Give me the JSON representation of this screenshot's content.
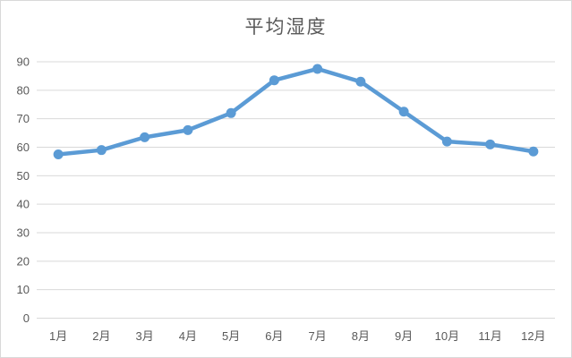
{
  "chart_data": {
    "type": "line",
    "title": "平均湿度",
    "categories": [
      "1月",
      "2月",
      "3月",
      "4月",
      "5月",
      "6月",
      "7月",
      "8月",
      "9月",
      "10月",
      "11月",
      "12月"
    ],
    "values": [
      57.5,
      59,
      63.5,
      66,
      72,
      83.5,
      87.5,
      83,
      72.5,
      62,
      61,
      58.5
    ],
    "xlabel": "",
    "ylabel": "",
    "ylim": [
      0,
      90
    ],
    "y_ticks": [
      0,
      10,
      20,
      30,
      40,
      50,
      60,
      70,
      80,
      90
    ],
    "grid": true,
    "legend": "none",
    "marker": "circle",
    "colors": {
      "line": "#5B9BD5",
      "marker": "#5B9BD5",
      "gridline": "#D9D9D9",
      "axis_text": "#595959",
      "title_text": "#595959",
      "frame_border": "#D9D9D9",
      "background": "#FFFFFF"
    }
  }
}
